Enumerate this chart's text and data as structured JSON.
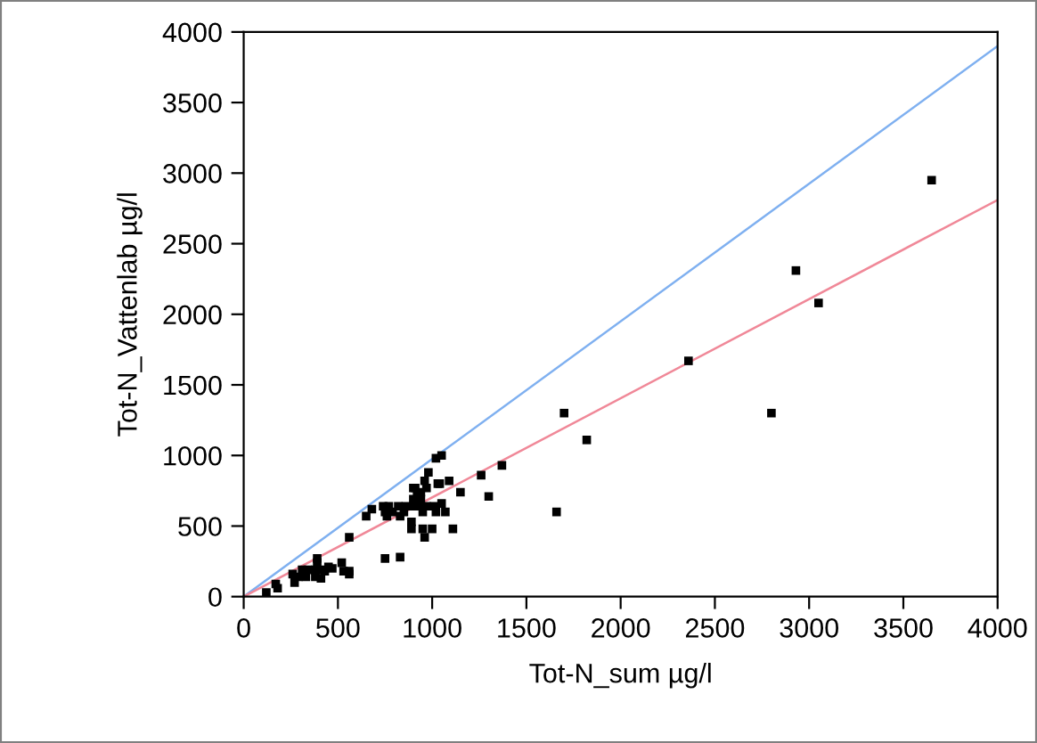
{
  "chart_data": {
    "type": "scatter",
    "xlabel": "Tot-N_sum µg/l",
    "ylabel": "Tot-N_Vattenlab µg/l",
    "xlim": [
      0,
      4000
    ],
    "ylim": [
      0,
      4000
    ],
    "xticks": [
      0,
      500,
      1000,
      1500,
      2000,
      2500,
      3000,
      3500,
      4000
    ],
    "yticks": [
      0,
      500,
      1000,
      1500,
      2000,
      2500,
      3000,
      3500,
      4000
    ],
    "grid": false,
    "legend": false,
    "series": [
      {
        "marker": "square",
        "color": "#000000",
        "x": [
          3650,
          2930,
          3050,
          2360,
          2800,
          1700,
          1820,
          1660,
          1370,
          1260,
          1300,
          1150,
          1090,
          1110,
          1050,
          1020,
          980,
          960,
          1030,
          1040,
          900,
          910,
          970,
          940,
          920,
          900,
          940,
          1050,
          1020,
          1070,
          950,
          820,
          860,
          900,
          930,
          970,
          1010,
          740,
          770,
          750,
          790,
          850,
          760,
          830,
          680,
          650,
          890,
          890,
          950,
          1000,
          960,
          560,
          830,
          750,
          520,
          530,
          560,
          560,
          450,
          470,
          430,
          390,
          390,
          310,
          340,
          380,
          410,
          260,
          290,
          330,
          380,
          410,
          270,
          170,
          180,
          120
        ],
        "values": [
          2950,
          2310,
          2080,
          1670,
          1300,
          1300,
          1110,
          600,
          930,
          860,
          710,
          740,
          820,
          480,
          1000,
          980,
          880,
          820,
          800,
          800,
          770,
          770,
          770,
          740,
          720,
          690,
          690,
          660,
          600,
          600,
          600,
          640,
          640,
          640,
          640,
          640,
          640,
          640,
          640,
          600,
          600,
          600,
          570,
          570,
          620,
          570,
          530,
          480,
          480,
          480,
          420,
          420,
          280,
          270,
          240,
          180,
          180,
          160,
          210,
          200,
          180,
          270,
          240,
          190,
          190,
          190,
          190,
          160,
          140,
          140,
          140,
          130,
          100,
          90,
          60,
          30
        ]
      },
      {
        "type": "line",
        "color": "#7fb0f0",
        "x": [
          0,
          4000
        ],
        "values": [
          0,
          3900
        ]
      },
      {
        "type": "line",
        "color": "#f08898",
        "x": [
          0,
          4000
        ],
        "values": [
          0,
          2810
        ]
      }
    ]
  }
}
